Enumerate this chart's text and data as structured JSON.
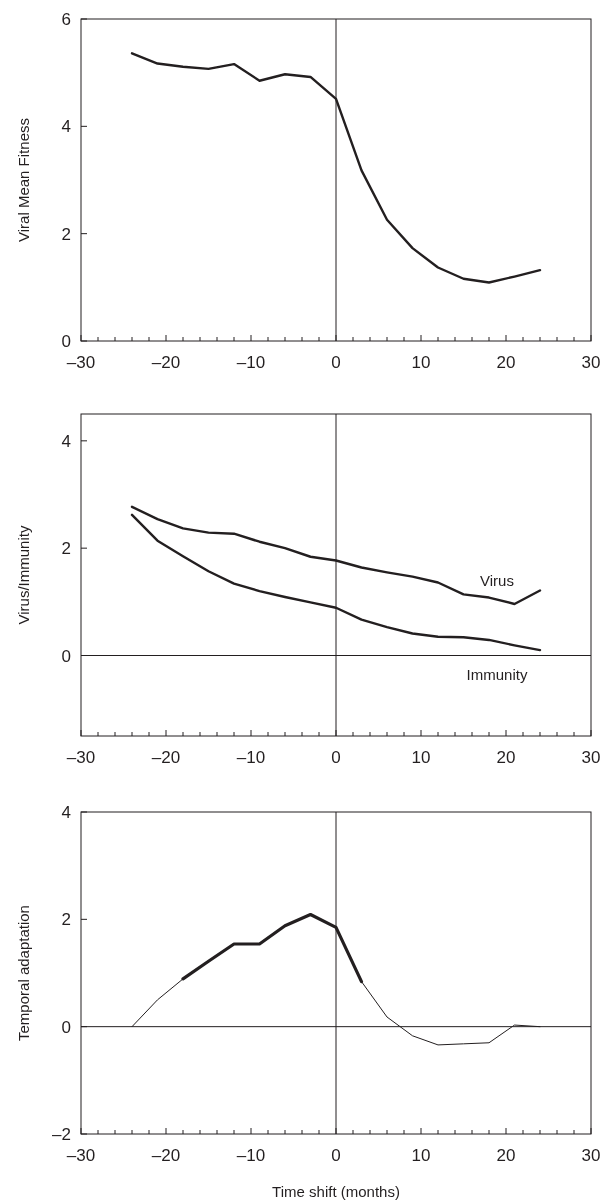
{
  "chart_data": [
    {
      "type": "line",
      "ylabel": "Viral Mean Fitness",
      "x": [
        -24,
        -21,
        -18,
        -15,
        -12,
        -9,
        -6,
        -3,
        0,
        3,
        6,
        9,
        12,
        15,
        18,
        21,
        24
      ],
      "xlim": [
        -30,
        30
      ],
      "ylim": [
        0,
        6
      ],
      "yticks": [
        0,
        2,
        4,
        6
      ],
      "xticks": [
        {
          "value": -30,
          "label": "–30"
        },
        {
          "value": -28,
          "label": null
        },
        {
          "value": -26,
          "label": null
        },
        {
          "value": -24,
          "label": null
        },
        {
          "value": -22,
          "label": null
        },
        {
          "value": -20,
          "label": "–20"
        },
        {
          "value": -18,
          "label": null
        },
        {
          "value": -16,
          "label": null
        },
        {
          "value": -14,
          "label": null
        },
        {
          "value": -12,
          "label": null
        },
        {
          "value": -10,
          "label": "–10"
        },
        {
          "value": -8,
          "label": null
        },
        {
          "value": -6,
          "label": null
        },
        {
          "value": -4,
          "label": null
        },
        {
          "value": -2,
          "label": null
        },
        0,
        {
          "value": 2,
          "label": null
        },
        {
          "value": 4,
          "label": null
        },
        {
          "value": 6,
          "label": null
        },
        {
          "value": 8,
          "label": null
        },
        10,
        {
          "value": 12,
          "label": null
        },
        {
          "value": 14,
          "label": null
        },
        {
          "value": 16,
          "label": null
        },
        {
          "value": 18,
          "label": null
        },
        20,
        {
          "value": 22,
          "label": null
        },
        {
          "value": 24,
          "label": null
        },
        {
          "value": 26,
          "label": null
        },
        {
          "value": 28,
          "label": null
        },
        30
      ],
      "series": [
        {
          "color": "#231f20",
          "values": [
            5.36,
            5.17,
            5.11,
            5.07,
            5.16,
            4.85,
            4.97,
            4.92,
            4.51,
            3.18,
            2.26,
            1.73,
            1.37,
            1.16,
            1.09,
            1.2,
            1.32
          ]
        }
      ],
      "ref_lines": [
        {
          "axis": "x",
          "value": 0,
          "color": "#231f20"
        }
      ]
    },
    {
      "type": "line",
      "ylabel": "Virus/Immunity",
      "x": [
        -24,
        -21,
        -18,
        -15,
        -12,
        -9,
        -6,
        -3,
        0,
        3,
        6,
        9,
        12,
        15,
        18,
        21,
        24
      ],
      "xlim": [
        -30,
        30
      ],
      "ylim": [
        -1.5,
        4.5
      ],
      "yticks": [
        0,
        2,
        4
      ],
      "xticks": [
        {
          "value": -30,
          "label": "–30"
        },
        {
          "value": -28,
          "label": null
        },
        {
          "value": -26,
          "label": null
        },
        {
          "value": -24,
          "label": null
        },
        {
          "value": -22,
          "label": null
        },
        {
          "value": -20,
          "label": "–20"
        },
        {
          "value": -18,
          "label": null
        },
        {
          "value": -16,
          "label": null
        },
        {
          "value": -14,
          "label": null
        },
        {
          "value": -12,
          "label": null
        },
        {
          "value": -10,
          "label": "–10"
        },
        {
          "value": -8,
          "label": null
        },
        {
          "value": -6,
          "label": null
        },
        {
          "value": -4,
          "label": null
        },
        {
          "value": -2,
          "label": null
        },
        0,
        {
          "value": 2,
          "label": null
        },
        {
          "value": 4,
          "label": null
        },
        {
          "value": 6,
          "label": null
        },
        {
          "value": 8,
          "label": null
        },
        10,
        {
          "value": 12,
          "label": null
        },
        {
          "value": 14,
          "label": null
        },
        {
          "value": 16,
          "label": null
        },
        {
          "value": 18,
          "label": null
        },
        20,
        {
          "value": 22,
          "label": null
        },
        {
          "value": 24,
          "label": null
        },
        {
          "value": 26,
          "label": null
        },
        {
          "value": 28,
          "label": null
        },
        30
      ],
      "series": [
        {
          "name": "Virus",
          "color": "#231f20",
          "values": [
            2.77,
            2.54,
            2.37,
            2.29,
            2.27,
            2.12,
            2.0,
            1.84,
            1.77,
            1.64,
            1.55,
            1.47,
            1.36,
            1.14,
            1.08,
            0.96,
            1.21
          ]
        },
        {
          "name": "Immunity",
          "color": "#231f20",
          "values": [
            2.62,
            2.14,
            1.85,
            1.57,
            1.34,
            1.2,
            1.09,
            0.99,
            0.89,
            0.67,
            0.53,
            0.41,
            0.35,
            0.34,
            0.29,
            0.19,
            0.1
          ]
        }
      ],
      "ref_lines": [
        {
          "axis": "x",
          "value": 0,
          "color": "#231f20"
        },
        {
          "axis": "y",
          "value": 0,
          "color": "#231f20"
        }
      ]
    },
    {
      "type": "line",
      "ylabel": "Temporal adaptation",
      "xlabel": "Time shift (months)",
      "x": [
        -24,
        -21,
        -18,
        -15,
        -12,
        -9,
        -6,
        -3,
        0,
        3,
        6,
        9,
        12,
        15,
        18,
        21,
        24
      ],
      "xlim": [
        -30,
        30
      ],
      "ylim": [
        -2,
        4
      ],
      "yticks": [
        {
          "value": -2,
          "label": "–2"
        },
        0,
        2,
        4
      ],
      "xticks": [
        {
          "value": -30,
          "label": "–30"
        },
        {
          "value": -28,
          "label": null
        },
        {
          "value": -26,
          "label": null
        },
        {
          "value": -24,
          "label": null
        },
        {
          "value": -22,
          "label": null
        },
        {
          "value": -20,
          "label": "–20"
        },
        {
          "value": -18,
          "label": null
        },
        {
          "value": -16,
          "label": null
        },
        {
          "value": -14,
          "label": null
        },
        {
          "value": -12,
          "label": null
        },
        {
          "value": -10,
          "label": "–10"
        },
        {
          "value": -8,
          "label": null
        },
        {
          "value": -6,
          "label": null
        },
        {
          "value": -4,
          "label": null
        },
        {
          "value": -2,
          "label": null
        },
        0,
        {
          "value": 2,
          "label": null
        },
        {
          "value": 4,
          "label": null
        },
        {
          "value": 6,
          "label": null
        },
        {
          "value": 8,
          "label": null
        },
        10,
        {
          "value": 12,
          "label": null
        },
        {
          "value": 14,
          "label": null
        },
        {
          "value": 16,
          "label": null
        },
        {
          "value": 18,
          "label": null
        },
        20,
        {
          "value": 22,
          "label": null
        },
        {
          "value": 24,
          "label": null
        },
        {
          "value": 26,
          "label": null
        },
        {
          "value": 28,
          "label": null
        },
        30
      ],
      "series": [
        {
          "color": "#231f20",
          "values": [
            0,
            0.5,
            0.89,
            null,
            null,
            null,
            null,
            null,
            null,
            0.84,
            0.18,
            -0.17,
            -0.34,
            -0.32,
            -0.3,
            0.03,
            0
          ]
        },
        {
          "color": "#231f20",
          "x": [
            -18,
            -15,
            -12,
            -9,
            -6,
            -3,
            0,
            3
          ],
          "values": [
            0.89,
            1.22,
            1.54,
            1.54,
            1.88,
            2.09,
            1.85,
            0.84
          ]
        }
      ],
      "ref_lines": [
        {
          "axis": "x",
          "value": 0,
          "color": "#231f20"
        },
        {
          "axis": "y",
          "value": 0,
          "color": "#231f20"
        }
      ]
    }
  ]
}
